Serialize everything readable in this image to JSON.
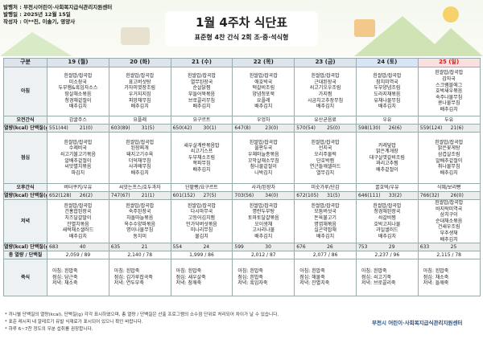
{
  "header": {
    "publisher": "발행처 : 부천시어린이·사회복지급식관리지원센터",
    "date": "발행일 : 2025년 12월 15일",
    "author": "작성자 : 이**진, 이솔기, 영양사",
    "title": "1월 4주차 식단표",
    "subtitle": "표준형 4찬 간식 2회 조·중·석식형"
  },
  "table": {
    "columns": [
      "구분",
      "19 (월)",
      "20 (화)",
      "21 (수)",
      "22 (목)",
      "23 (금)",
      "24 (토)",
      "25 (일)"
    ],
    "rows": [
      {
        "label": "아침",
        "kind": "menu",
        "cells": [
          [
            "흰쌀밥/잡곡밥",
            "미소장국",
            "두부햄&흑임자소스",
            "땅살채소볶음",
            "청경채겉절이",
            "배추김치"
          ],
          [
            "흰쌀밥/잡곡밥",
            "표고버섯탕",
            "가자미엿장조림",
            "우거지지짐",
            "피망채무침",
            "배추김치"
          ],
          [
            "흰쌀밥/잡곡밥",
            "열무된장국",
            "순살닭찜",
            "부들어묵볶음",
            "브로콜리무침",
            "배추김치"
          ],
          [
            "흰쌀밥/잡곡밥",
            "애호박국",
            "떡갈비조림",
            "양념청포묵",
            "요플레",
            "배추김치"
          ],
          [
            "흰쌀밥/잡곡밥",
            "근대된장국",
            "쇠고기오우조림",
            "가지찜",
            "시금치고추장무침",
            "배추김치"
          ],
          [
            "흰쌀밥/잡곡밥",
            "참치미역국",
            "두부양념조림",
            "도라지채볶음",
            "유채나물무침",
            "배추김치"
          ],
          [
            "흰쌀밥/잡곡밥",
            "감자국",
            "스크램블에그",
            "호박새우볶음",
            "숙주나물무침",
            "콩나물무침",
            "배추김치"
          ]
        ]
      },
      {
        "label": "오전간식",
        "kind": "text",
        "cells": [
          "감귤주스",
          "요플레",
          "요구르트",
          "우엉차",
          "유산균음료",
          "우유",
          "두유"
        ]
      },
      {
        "label": "열량(kcal) 단백질(g)",
        "kind": "energy",
        "cells": [
          [
            "551(44)",
            "21(0)"
          ],
          [
            "603(89)",
            "31(5)"
          ],
          [
            "650(42)",
            "30(1)"
          ],
          [
            "647(8)",
            "23(0)"
          ],
          [
            "570(54)",
            "25(0)"
          ],
          [
            "598(130)",
            "26(6)"
          ],
          [
            "559(124)",
            "21(6)"
          ]
        ]
      },
      {
        "label": "점심",
        "kind": "menu",
        "cells": [
          [
            "흰쌀밥/잡곡밥",
            "수제비국",
            "쇠고기불고기볶음",
            "알배추겉절이",
            "씨앗멸치볶음",
            "파김치"
          ],
          [
            "흰쌀밥/잡곡밥",
            "된장찌개",
            "돼지고기수육",
            "더덕채무침",
            "사과배무침",
            "배추김치"
          ],
          [
            "새우살계란볶음밥",
            "쇠고기스프",
            "두부채소조림",
            "쪽파무침",
            "배추김치"
          ],
          [
            "흰쌀밥/잡곡밥",
            "올판두국",
            "우체마늘종볶음",
            "꼬막살채소무침",
            "참나물겉절이",
            "나박김치"
          ],
          [
            "흰쌀밥/잡곡밥",
            "선지국",
            "오리주물럭",
            "단호박찜",
            "연근들깨샐러드",
            "열무김치"
          ],
          [
            "카레덮밥",
            "맑은계개장",
            "대구살엿갈비조림",
            "꽈리고추찜",
            "배추겉절이"
          ],
          [
            "흰쌀밥/잡곡밥",
            "맑은꽃게탕",
            "삼겹살조림",
            "알배추겉절이",
            "취나물무침",
            "배추김치"
          ]
        ]
      },
      {
        "label": "오후간식",
        "kind": "text",
        "cells": [
          "버터쿠키/우유",
          "씨앗는프스/호두과자",
          "단팥빵/요구르트",
          "사과/된장차",
          "미숫가루/단감",
          "꿀호떡/우유",
          "식혜/보리빵"
        ]
      },
      {
        "label": "열량(kcal) 단백질(g)",
        "kind": "energy",
        "cells": [
          [
            "652(128)",
            "26(2)"
          ],
          [
            "747(67)",
            "21(1)"
          ],
          [
            "601(152)",
            "27(5)"
          ],
          [
            "703(56)",
            "34(0)"
          ],
          [
            "672(105)",
            "31(5)"
          ],
          [
            "646(111)",
            "33(2)"
          ],
          [
            "766(32)",
            "26(0)"
          ]
        ]
      },
      {
        "label": "저녁",
        "kind": "menu",
        "cells": [
          [
            "흰쌀밥/잡곡밥",
            "건홍합된장국",
            "치즈달걀말이",
            "잔멸치볶음",
            "새싹채소샐러드",
            "배추김치"
          ],
          [
            "흰쌀밥/잡곡밥",
            "숙주된장국",
            "차돌마늘볶음",
            "옥수수양파볶음",
            "명이나물무침",
            "동치미"
          ],
          [
            "흰쌀밥/잡곡밥",
            "다시마무국",
            "고등어김치찜",
            "만가닥버섯볶음",
            "미나리무침",
            "물김치"
          ],
          [
            "흰쌀밥/잡곡밥",
            "명란두부탕",
            "토마토달걀볶음",
            "오이생채",
            "고사리나물",
            "배추김치"
          ],
          [
            "흰쌀밥/잡곡밥",
            "모둠버섯국",
            "돈육불고기",
            "명엽채볶음",
            "실곤약잡채",
            "배추김치"
          ],
          [
            "흰쌀밥/잡곡밥",
            "청경채된장국",
            "쇠갈비찜",
            "호박고지나물",
            "과일샐러드",
            "배추김치"
          ],
          [
            "흰쌀밥/잡곡밥",
            "바지락미역국",
            "삼치구이",
            "순대채소볶음",
            "건새우조림",
            "부추생채",
            "배추김치"
          ]
        ]
      },
      {
        "label": "열량(kcal) 단백질(g)",
        "kind": "energy",
        "cells": [
          [
            "683",
            "40"
          ],
          [
            "635",
            "21"
          ],
          [
            "554",
            "24"
          ],
          [
            "599",
            "30"
          ],
          [
            "676",
            "26"
          ],
          [
            "753",
            "29"
          ],
          [
            "633",
            "25"
          ]
        ]
      },
      {
        "label": "총 열량 / 단백질",
        "kind": "text",
        "cells": [
          "2,059 / 89",
          "2,140 / 78",
          "1,999 / 86",
          "2,012 / 87",
          "2,077 / 86",
          "2,237 / 96",
          "2,115 / 78"
        ]
      },
      {
        "label": "죽식",
        "kind": "porridge",
        "cells": [
          [
            "아침: 흰밥죽",
            "점심: 당근죽",
            "저녁: 채소죽"
          ],
          [
            "아침: 흰밥죽",
            "점심: 김가루잡곡죽",
            "저녁: 연두부죽"
          ],
          [
            "아침: 흰밥죽",
            "점심: 새우살죽",
            "저녁: 참깨죽"
          ],
          [
            "아침: 흰밥죽",
            "점심: 흰밥죽",
            "저녁: 흑임자죽"
          ],
          [
            "아침: 흰밥죽",
            "점심: 해물죽",
            "저녁: 잔멸치죽"
          ],
          [
            "아침: 흰밥죽",
            "점심: 쇠고기죽",
            "저녁: 브로콜리죽"
          ],
          [
            "아침: 흰밥죽",
            "점심: 채소죽",
            "저녁: 들깨죽"
          ]
        ]
      }
    ]
  },
  "footer": {
    "notes": [
      "* 끼니별 단백질의 열량(kcal), 단백질(g) 각각 표시하였으며, 총 열량 / 단백질은 산출 프로그램의 소수점 단위로 처리되어 차이가 날 수 있습니다.",
      "* 표준 레시피 내 알레르기 유발 식재료가 표시되어 있으니 확인 바랍니다.",
      "* 하루 6~7찬 정도의 우분 섭취를 권장합니다."
    ],
    "logo": "부천시 어린이·사회복지급식관리지원센터"
  }
}
